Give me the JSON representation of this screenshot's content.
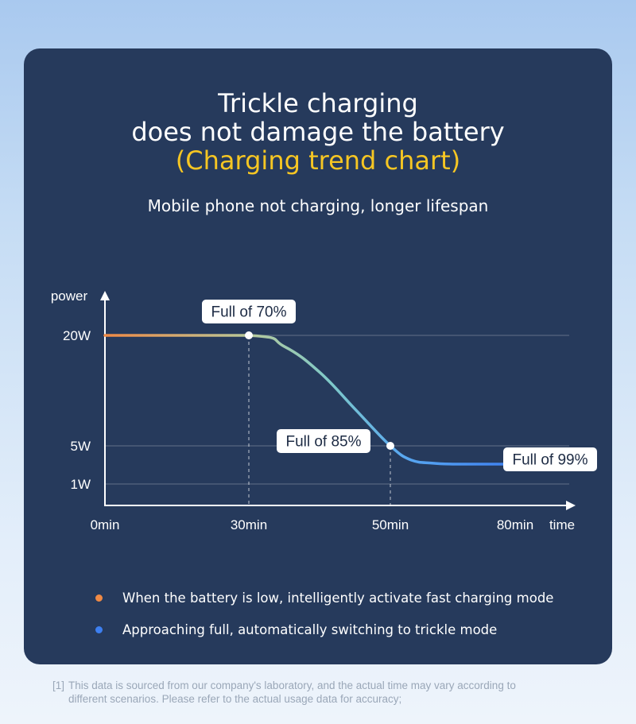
{
  "heading": {
    "line1": "Trickle charging",
    "line2": "does not damage the battery",
    "line3": "(Charging trend chart)"
  },
  "subtitle": "Mobile phone not charging, longer lifespan",
  "chart_data": {
    "type": "line",
    "ylabel": "power",
    "xlabel": "time",
    "x_ticks": [
      "0min",
      "30min",
      "50min",
      "80min"
    ],
    "y_ticks": [
      "20W",
      "5W",
      "1W"
    ],
    "series": [
      {
        "x_min": [
          0,
          30,
          35,
          40,
          45,
          50,
          55,
          60,
          65,
          70,
          75,
          80
        ],
        "y_w": [
          20,
          20,
          18.5,
          15,
          10,
          5,
          3.6,
          3.3,
          3.2,
          3.2,
          3.2,
          3.2
        ]
      }
    ],
    "annotations": [
      {
        "label": "Full of 70%",
        "x_min": 30,
        "y_w": 20
      },
      {
        "label": "Full of 85%",
        "x_min": 50,
        "y_w": 5
      },
      {
        "label": "Full of 99%",
        "x_min": 80,
        "y_w": 3.2
      }
    ],
    "colors": {
      "fast": "#f08a45",
      "transition": "#7ec9c9",
      "trickle": "#3d7ff0"
    }
  },
  "legend": [
    {
      "color": "#f08a45",
      "text": "When the battery is low, intelligently activate fast charging mode"
    },
    {
      "color": "#3d7ff0",
      "text": "Approaching full, automatically switching to trickle mode"
    }
  ],
  "footnote": {
    "prefix": "[1]",
    "line1": "This data is sourced from our company's laboratory, and the actual time may vary according to",
    "line2": "different scenarios. Please refer to the actual usage data for accuracy;"
  }
}
